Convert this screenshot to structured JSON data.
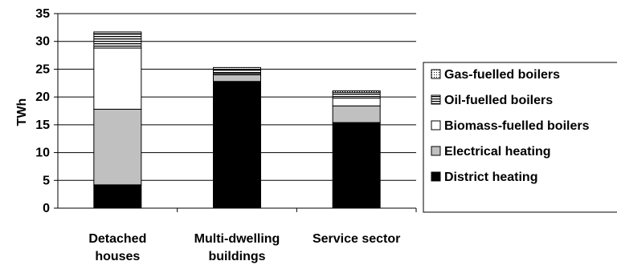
{
  "chart_data": {
    "type": "bar",
    "stacked": true,
    "title": "",
    "xlabel": "",
    "ylabel": "TWh",
    "ylim": [
      0,
      35
    ],
    "yticks": [
      "0",
      "5",
      "10",
      "15",
      "20",
      "25",
      "30",
      "35"
    ],
    "categories": [
      [
        "Detached",
        "houses"
      ],
      [
        "Multi-dwelling",
        "buildings"
      ],
      [
        "Service sector"
      ]
    ],
    "grid": true,
    "legend_position": "right",
    "series": [
      {
        "name": "District heating",
        "values": [
          4.2,
          22.8,
          15.4
        ],
        "fill": "#000000",
        "pattern": "solid"
      },
      {
        "name": "Electrical heating",
        "values": [
          13.6,
          1.2,
          3.0
        ],
        "fill": "#c0c0c0",
        "pattern": "solid"
      },
      {
        "name": "Biomass-fuelled boilers",
        "values": [
          11.0,
          0.2,
          1.4
        ],
        "fill": "#ffffff",
        "pattern": "solid"
      },
      {
        "name": "Oil-fuelled boilers",
        "values": [
          2.6,
          0.8,
          1.0
        ],
        "fill": "#ffffff",
        "pattern": "hlines"
      },
      {
        "name": "Gas-fuelled boilers",
        "values": [
          0.3,
          0.3,
          0.3
        ],
        "fill": "#ffffff",
        "pattern": "dots"
      }
    ]
  }
}
